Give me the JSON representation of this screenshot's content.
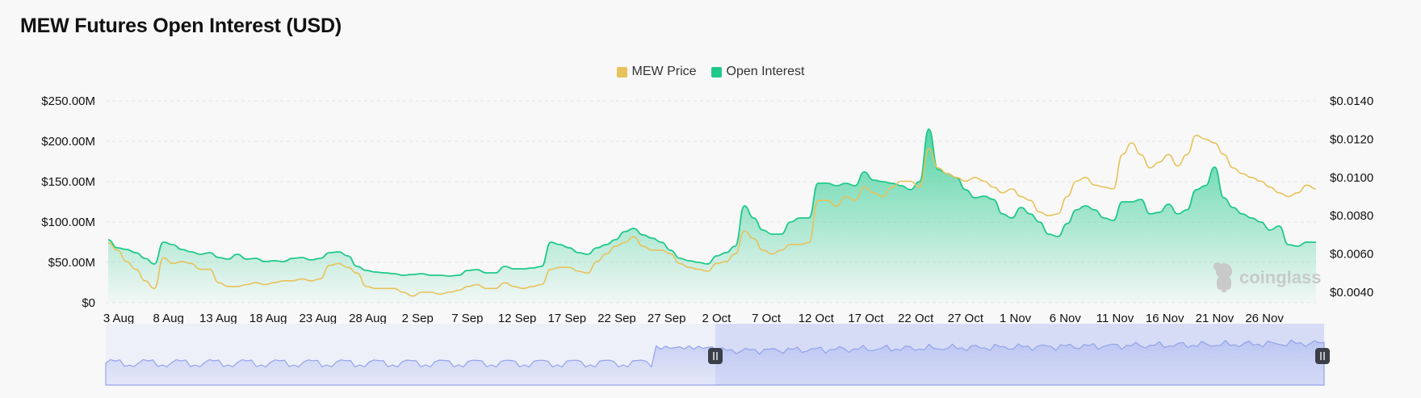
{
  "title": "MEW Futures Open Interest (USD)",
  "watermark": "coinglass",
  "legend": [
    {
      "label": "MEW Price",
      "color": "#e8c25a"
    },
    {
      "label": "Open Interest",
      "color": "#1fc98a"
    }
  ],
  "chart_data": {
    "type": "line",
    "title": "MEW Futures Open Interest (USD)",
    "x_ticks": [
      "3 Aug",
      "8 Aug",
      "13 Aug",
      "18 Aug",
      "23 Aug",
      "28 Aug",
      "2 Sep",
      "7 Sep",
      "12 Sep",
      "17 Sep",
      "22 Sep",
      "27 Sep",
      "2 Oct",
      "7 Oct",
      "12 Oct",
      "17 Oct",
      "22 Oct",
      "27 Oct",
      "1 Nov",
      "6 Nov",
      "11 Nov",
      "16 Nov",
      "21 Nov",
      "26 Nov"
    ],
    "y_left": {
      "ticks": [
        "$0",
        "$50.00M",
        "$100.00M",
        "$150.00M",
        "$200.00M",
        "$250.00M"
      ],
      "range": [
        0,
        250
      ]
    },
    "y_right": {
      "ticks": [
        "$0.0040",
        "$0.0060",
        "$0.0080",
        "$0.0100",
        "$0.0120",
        "$0.0140"
      ],
      "range": [
        0.0035,
        0.014
      ]
    },
    "series": [
      {
        "name": "Open Interest",
        "axis": "left",
        "color": "#1fc98a",
        "values": [
          78,
          68,
          66,
          62,
          55,
          48,
          75,
          72,
          66,
          63,
          60,
          62,
          56,
          54,
          60,
          54,
          55,
          51,
          52,
          51,
          55,
          56,
          53,
          55,
          62,
          63,
          58,
          45,
          40,
          38,
          37,
          36,
          34,
          35,
          36,
          34,
          34,
          33,
          34,
          40,
          41,
          37,
          37,
          45,
          42,
          42,
          43,
          45,
          75,
          72,
          68,
          62,
          60,
          68,
          72,
          78,
          88,
          92,
          84,
          80,
          75,
          65,
          55,
          52,
          50,
          48,
          58,
          62,
          70,
          120,
          105,
          90,
          85,
          85,
          100,
          105,
          105,
          148,
          148,
          145,
          148,
          145,
          162,
          152,
          150,
          148,
          145,
          140,
          150,
          215,
          165,
          160,
          155,
          140,
          130,
          132,
          128,
          110,
          105,
          118,
          110,
          100,
          85,
          82,
          98,
          115,
          120,
          115,
          105,
          102,
          125,
          125,
          128,
          110,
          112,
          122,
          110,
          115,
          140,
          145,
          168,
          130,
          118,
          110,
          105,
          100,
          90,
          95,
          72,
          70,
          75,
          75
        ]
      },
      {
        "name": "MEW Price",
        "axis": "right",
        "color": "#e8c25a",
        "values": [
          0.0066,
          0.0062,
          0.0056,
          0.0052,
          0.0046,
          0.0042,
          0.0058,
          0.0055,
          0.0056,
          0.0055,
          0.0052,
          0.0052,
          0.0045,
          0.0043,
          0.0043,
          0.0044,
          0.0045,
          0.0044,
          0.0045,
          0.0046,
          0.0046,
          0.0047,
          0.0046,
          0.0047,
          0.0054,
          0.0055,
          0.0053,
          0.005,
          0.0043,
          0.0042,
          0.0042,
          0.0042,
          0.004,
          0.0038,
          0.004,
          0.004,
          0.0039,
          0.004,
          0.0041,
          0.0043,
          0.0044,
          0.0042,
          0.0042,
          0.0045,
          0.0043,
          0.0042,
          0.0043,
          0.0044,
          0.0052,
          0.0053,
          0.0053,
          0.0051,
          0.005,
          0.0056,
          0.006,
          0.0064,
          0.0066,
          0.0069,
          0.0064,
          0.0062,
          0.0062,
          0.006,
          0.0055,
          0.0053,
          0.0052,
          0.0051,
          0.0055,
          0.0056,
          0.006,
          0.0072,
          0.0068,
          0.0062,
          0.006,
          0.0062,
          0.0065,
          0.0065,
          0.0066,
          0.0088,
          0.0088,
          0.0085,
          0.009,
          0.0088,
          0.0095,
          0.0092,
          0.009,
          0.0095,
          0.0098,
          0.0098,
          0.0095,
          0.0115,
          0.0105,
          0.0102,
          0.01,
          0.0098,
          0.01,
          0.0098,
          0.0095,
          0.0092,
          0.0094,
          0.009,
          0.0088,
          0.0082,
          0.008,
          0.0081,
          0.009,
          0.0098,
          0.01,
          0.0096,
          0.0095,
          0.0094,
          0.0112,
          0.0118,
          0.0112,
          0.0105,
          0.0108,
          0.0112,
          0.0106,
          0.0112,
          0.0122,
          0.012,
          0.0118,
          0.0112,
          0.0105,
          0.0102,
          0.01,
          0.0098,
          0.0095,
          0.0092,
          0.009,
          0.0092,
          0.0096,
          0.0094
        ]
      }
    ],
    "navigator": {
      "selection_start_fraction": 0.5,
      "selection_end_fraction": 1.0
    }
  }
}
